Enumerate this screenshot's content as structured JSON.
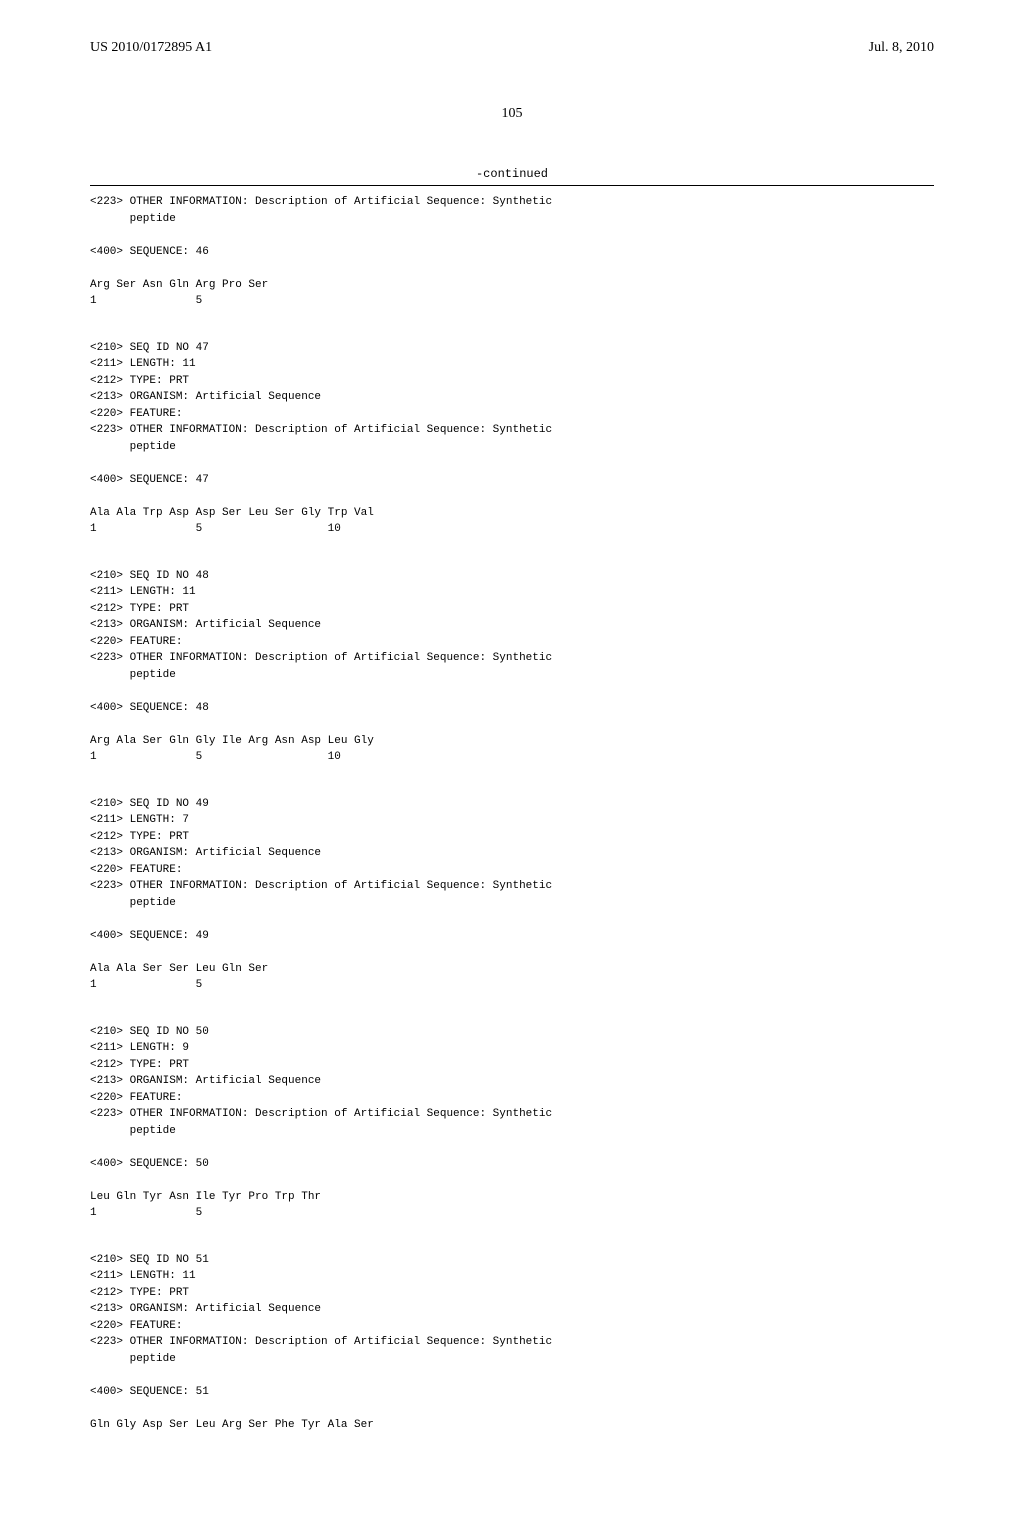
{
  "header": {
    "pub_number": "US 2010/0172895 A1",
    "pub_date": "Jul. 8, 2010"
  },
  "page_number": "105",
  "continued_label": "-continued",
  "blocks": [
    "<223> OTHER INFORMATION: Description of Artificial Sequence: Synthetic\n      peptide\n\n<400> SEQUENCE: 46\n\nArg Ser Asn Gln Arg Pro Ser\n1               5",
    "<210> SEQ ID NO 47\n<211> LENGTH: 11\n<212> TYPE: PRT\n<213> ORGANISM: Artificial Sequence\n<220> FEATURE:\n<223> OTHER INFORMATION: Description of Artificial Sequence: Synthetic\n      peptide\n\n<400> SEQUENCE: 47\n\nAla Ala Trp Asp Asp Ser Leu Ser Gly Trp Val\n1               5                   10",
    "<210> SEQ ID NO 48\n<211> LENGTH: 11\n<212> TYPE: PRT\n<213> ORGANISM: Artificial Sequence\n<220> FEATURE:\n<223> OTHER INFORMATION: Description of Artificial Sequence: Synthetic\n      peptide\n\n<400> SEQUENCE: 48\n\nArg Ala Ser Gln Gly Ile Arg Asn Asp Leu Gly\n1               5                   10",
    "<210> SEQ ID NO 49\n<211> LENGTH: 7\n<212> TYPE: PRT\n<213> ORGANISM: Artificial Sequence\n<220> FEATURE:\n<223> OTHER INFORMATION: Description of Artificial Sequence: Synthetic\n      peptide\n\n<400> SEQUENCE: 49\n\nAla Ala Ser Ser Leu Gln Ser\n1               5",
    "<210> SEQ ID NO 50\n<211> LENGTH: 9\n<212> TYPE: PRT\n<213> ORGANISM: Artificial Sequence\n<220> FEATURE:\n<223> OTHER INFORMATION: Description of Artificial Sequence: Synthetic\n      peptide\n\n<400> SEQUENCE: 50\n\nLeu Gln Tyr Asn Ile Tyr Pro Trp Thr\n1               5",
    "<210> SEQ ID NO 51\n<211> LENGTH: 11\n<212> TYPE: PRT\n<213> ORGANISM: Artificial Sequence\n<220> FEATURE:\n<223> OTHER INFORMATION: Description of Artificial Sequence: Synthetic\n      peptide\n\n<400> SEQUENCE: 51\n\nGln Gly Asp Ser Leu Arg Ser Phe Tyr Ala Ser"
  ]
}
